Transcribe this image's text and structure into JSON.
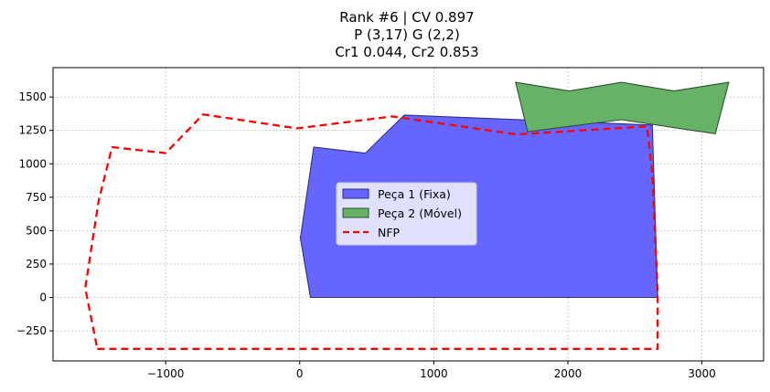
{
  "chart_data": {
    "type": "area",
    "title_lines": [
      "Rank #6 | CV 0.897",
      "P (3,17) G (2,2)",
      "Cr1 0.044, Cr2 0.853"
    ],
    "xlim": [
      -1840,
      3460
    ],
    "ylim": [
      -475,
      1720
    ],
    "xticks": [
      -1000,
      0,
      1000,
      2000,
      3000
    ],
    "xtick_labels": [
      "−1000",
      "0",
      "1000",
      "2000",
      "3000"
    ],
    "yticks": [
      -250,
      0,
      250,
      500,
      750,
      1000,
      1250,
      1500
    ],
    "ytick_labels": [
      "−250",
      "0",
      "250",
      "500",
      "750",
      "1000",
      "1250",
      "1500"
    ],
    "grid": true,
    "legend_position": "center",
    "series": [
      {
        "name": "Peça 1 (Fixa)",
        "kind": "polygon",
        "color": "#6666ff",
        "edge": "#2e2e80",
        "points": [
          [
            80,
            0
          ],
          [
            2670,
            0
          ],
          [
            2630,
            1290
          ],
          [
            780,
            1365
          ],
          [
            490,
            1080
          ],
          [
            105,
            1125
          ],
          [
            5,
            445
          ]
        ]
      },
      {
        "name": "Peça 2 (Móvel)",
        "kind": "polygon",
        "color": "#66b266",
        "edge": "#2f4f2f",
        "points": [
          [
            1610,
            1610
          ],
          [
            2010,
            1545
          ],
          [
            2400,
            1610
          ],
          [
            2790,
            1545
          ],
          [
            3200,
            1610
          ],
          [
            3100,
            1225
          ],
          [
            2400,
            1330
          ],
          [
            1700,
            1240
          ]
        ]
      },
      {
        "name": "NFP",
        "kind": "line",
        "color": "#ff0000",
        "points": [
          [
            -1510,
            -385
          ],
          [
            2670,
            -385
          ],
          [
            2670,
            30
          ],
          [
            2630,
            930
          ],
          [
            2590,
            1280
          ],
          [
            1620,
            1220
          ],
          [
            690,
            1355
          ],
          [
            -20,
            1265
          ],
          [
            -720,
            1370
          ],
          [
            -1000,
            1080
          ],
          [
            -1400,
            1125
          ],
          [
            -1500,
            720
          ],
          [
            -1600,
            70
          ],
          [
            -1510,
            -385
          ]
        ]
      }
    ]
  }
}
